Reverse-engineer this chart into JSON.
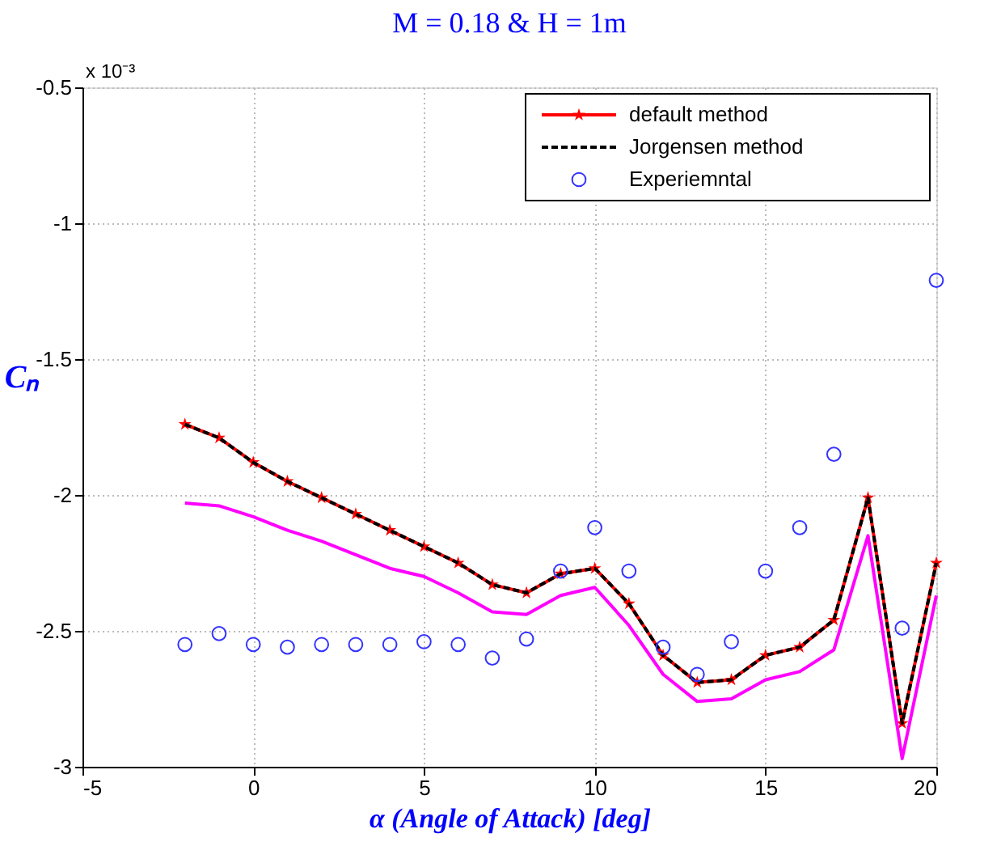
{
  "chart_data": {
    "type": "line",
    "title": "M = 0.18 & H = 1m",
    "xlabel": "α (Angle of Attack) [deg]",
    "ylabel": "Cₙ",
    "annotations": [
      "x 10⁻³"
    ],
    "x": [
      -2,
      -1,
      0,
      1,
      2,
      3,
      4,
      5,
      6,
      7,
      8,
      9,
      10,
      11,
      12,
      13,
      14,
      15,
      16,
      17,
      18,
      19,
      20
    ],
    "series": [
      {
        "name": "default method",
        "color": "#ff0000",
        "marker": "star",
        "line_style": "solid",
        "values": [
          -1.74,
          -1.79,
          -1.88,
          -1.95,
          -2.01,
          -2.07,
          -2.13,
          -2.19,
          -2.25,
          -2.33,
          -2.36,
          -2.29,
          -2.27,
          -2.4,
          -2.59,
          -2.69,
          -2.68,
          -2.59,
          -2.56,
          -2.46,
          -2.01,
          -2.84,
          -2.25
        ]
      },
      {
        "name": "Jorgensen method",
        "color": "#000000",
        "marker": "none",
        "line_style": "dashed",
        "values": [
          -1.74,
          -1.79,
          -1.88,
          -1.95,
          -2.01,
          -2.07,
          -2.13,
          -2.19,
          -2.25,
          -2.33,
          -2.36,
          -2.29,
          -2.27,
          -2.4,
          -2.59,
          -2.69,
          -2.68,
          -2.59,
          -2.56,
          -2.46,
          -2.01,
          -2.84,
          -2.25
        ]
      },
      {
        "name": "Experiemntal",
        "type": "scatter",
        "color": "#3333ff",
        "marker": "circle",
        "values": [
          -2.55,
          -2.51,
          -2.55,
          -2.56,
          -2.55,
          -2.55,
          -2.55,
          -2.54,
          -2.55,
          -2.6,
          -2.53,
          -2.28,
          -2.12,
          -2.28,
          -2.56,
          -2.66,
          -2.54,
          -2.28,
          -2.12,
          -1.85,
          null,
          -2.49,
          -1.21
        ]
      },
      {
        "color": "#ff00ff",
        "marker": "none",
        "line_style": "solid",
        "values": [
          -2.03,
          -2.04,
          -2.08,
          -2.13,
          -2.17,
          -2.22,
          -2.27,
          -2.3,
          -2.36,
          -2.43,
          -2.44,
          -2.37,
          -2.34,
          -2.48,
          -2.66,
          -2.76,
          -2.75,
          -2.68,
          -2.65,
          -2.57,
          -2.15,
          -2.97,
          -2.37
        ]
      }
    ],
    "xlim": [
      -5,
      20
    ],
    "xticks": [
      -5,
      0,
      5,
      10,
      15,
      20
    ],
    "ylim": [
      -3,
      -0.5
    ],
    "yticks": [
      -3,
      -2.5,
      -2,
      -1.5,
      -1,
      -0.5
    ],
    "grid": true,
    "legend": "top right"
  }
}
